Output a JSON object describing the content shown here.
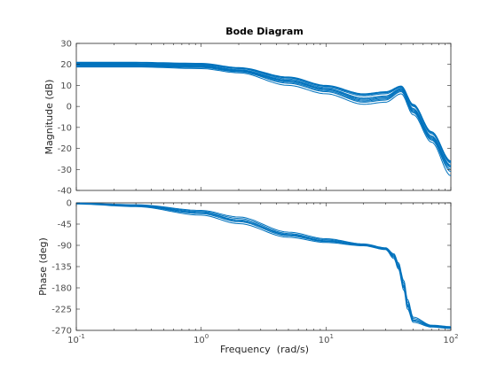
{
  "chart_data": {
    "type": "line",
    "title": "Bode Diagram",
    "xlabel": "Frequency  (rad/s)",
    "x_scale": "log",
    "xlim": [
      0.1,
      100
    ],
    "x_ticks": [
      {
        "value": 0.1,
        "base": "10",
        "exp": "-1"
      },
      {
        "value": 1,
        "base": "10",
        "exp": "0"
      },
      {
        "value": 10,
        "base": "10",
        "exp": "1"
      },
      {
        "value": 100,
        "base": "10",
        "exp": "2"
      }
    ],
    "series_color": "#0072bd",
    "panels": [
      {
        "name": "magnitude",
        "ylabel": "Magnitude (dB)",
        "ylim": [
          -40,
          30
        ],
        "yticks": [
          "30",
          "20",
          "10",
          "0",
          "-10",
          "-20",
          "-30",
          "-40"
        ],
        "ytick_values": [
          30,
          20,
          10,
          0,
          -10,
          -20,
          -30,
          -40
        ],
        "grid": false,
        "x": [
          0.1,
          0.3,
          1,
          2,
          5,
          10,
          20,
          30,
          40,
          50,
          70,
          100
        ],
        "series": [
          {
            "values": [
              19.5,
              19.5,
              19,
              17,
              12,
              8,
              3,
              4,
              8,
              -2,
              -15,
              -29
            ]
          },
          {
            "values": [
              20,
              20,
              19.5,
              17.5,
              12.5,
              8.5,
              4,
              5,
              8.5,
              -1,
              -14,
              -28
            ]
          },
          {
            "values": [
              20.5,
              20.5,
              20,
              18,
              13,
              9,
              5,
              6,
              9,
              0,
              -13,
              -27
            ]
          },
          {
            "values": [
              21,
              21,
              20.5,
              18.5,
              14,
              10,
              6,
              7,
              9.5,
              1,
              -12,
              -26
            ]
          },
          {
            "values": [
              19,
              19,
              18.5,
              16.5,
              11,
              7,
              2,
              3,
              7,
              -3,
              -16,
              -31
            ]
          },
          {
            "values": [
              18.8,
              18.8,
              18,
              16,
              10,
              6,
              1,
              2,
              6,
              -4,
              -17,
              -33
            ]
          },
          {
            "values": [
              20.2,
              20.2,
              19.8,
              18.2,
              13.5,
              9.5,
              5.5,
              6.5,
              9.2,
              0.5,
              -12.5,
              -26.5
            ]
          },
          {
            "values": [
              19.2,
              19.2,
              18.8,
              16.8,
              11.5,
              7.5,
              2.5,
              3.5,
              7.5,
              -2.5,
              -15.5,
              -30
            ]
          },
          {
            "values": [
              20.8,
              20.8,
              20.3,
              18.3,
              13.8,
              9.8,
              5.8,
              6.8,
              9.7,
              0.8,
              -12.2,
              -26.2
            ]
          },
          {
            "values": [
              19.7,
              19.7,
              19.2,
              17.2,
              12.2,
              8.2,
              3.5,
              4.5,
              8.2,
              -1.5,
              -14.5,
              -28.5
            ]
          }
        ]
      },
      {
        "name": "phase",
        "ylabel": "Phase (deg)",
        "ylim": [
          -270,
          0
        ],
        "yticks": [
          "0",
          "-45",
          "-90",
          "-135",
          "-180",
          "-225",
          "-270"
        ],
        "ytick_values": [
          0,
          -45,
          -90,
          -135,
          -180,
          -225,
          -270
        ],
        "grid": false,
        "x": [
          0.1,
          0.3,
          1,
          2,
          5,
          10,
          20,
          30,
          35,
          38,
          42,
          45,
          50,
          70,
          100
        ],
        "series": [
          {
            "values": [
              -1,
              -5,
              -18,
              -33,
              -65,
              -78,
              -88,
              -96,
              -110,
              -130,
              -170,
              -210,
              -245,
              -260,
              -263
            ]
          },
          {
            "values": [
              -1.5,
              -6,
              -20,
              -36,
              -67,
              -80,
              -89,
              -97,
              -112,
              -133,
              -175,
              -215,
              -248,
              -261,
              -264
            ]
          },
          {
            "values": [
              -2,
              -7,
              -23,
              -40,
              -70,
              -82,
              -90,
              -98,
              -115,
              -137,
              -180,
              -220,
              -250,
              -262,
              -265
            ]
          },
          {
            "values": [
              -0.5,
              -4,
              -16,
              -30,
              -62,
              -76,
              -87,
              -95,
              -108,
              -127,
              -165,
              -205,
              -242,
              -259,
              -262
            ]
          },
          {
            "values": [
              -2.5,
              -8,
              -26,
              -44,
              -73,
              -84,
              -91,
              -99,
              -118,
              -140,
              -185,
              -225,
              -253,
              -263,
              -266
            ]
          },
          {
            "values": [
              -1,
              -6,
              -21,
              -38,
              -68,
              -81,
              -89.5,
              -97.5,
              -113,
              -135,
              -178,
              -218,
              -249,
              -261.5,
              -264.5
            ]
          }
        ]
      }
    ]
  }
}
